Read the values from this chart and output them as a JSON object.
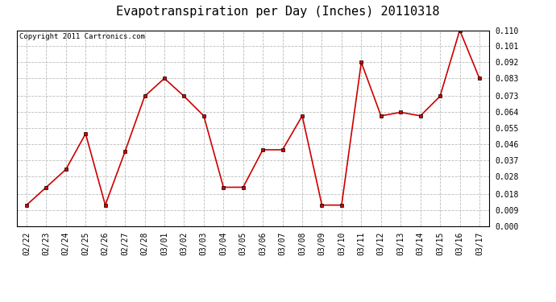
{
  "title": "Evapotranspiration per Day (Inches) 20110318",
  "copyright": "Copyright 2011 Cartronics.com",
  "dates": [
    "02/22",
    "02/23",
    "02/24",
    "02/25",
    "02/26",
    "02/27",
    "02/28",
    "03/01",
    "03/02",
    "03/03",
    "03/04",
    "03/05",
    "03/06",
    "03/07",
    "03/08",
    "03/09",
    "03/10",
    "03/11",
    "03/12",
    "03/13",
    "03/14",
    "03/15",
    "03/16",
    "03/17"
  ],
  "values": [
    0.012,
    0.022,
    0.032,
    0.052,
    0.012,
    0.042,
    0.073,
    0.083,
    0.073,
    0.062,
    0.022,
    0.022,
    0.043,
    0.043,
    0.062,
    0.012,
    0.012,
    0.092,
    0.062,
    0.064,
    0.062,
    0.073,
    0.11,
    0.083
  ],
  "ylim": [
    0.0,
    0.11
  ],
  "yticks": [
    0.0,
    0.009,
    0.018,
    0.028,
    0.037,
    0.046,
    0.055,
    0.064,
    0.073,
    0.083,
    0.092,
    0.101,
    0.11
  ],
  "line_color": "#cc0000",
  "marker": "s",
  "marker_size": 2.5,
  "bg_color": "#ffffff",
  "grid_color": "#bbbbbb",
  "title_fontsize": 11,
  "copyright_fontsize": 6.5,
  "tick_fontsize": 7,
  "ytick_fontsize": 7
}
